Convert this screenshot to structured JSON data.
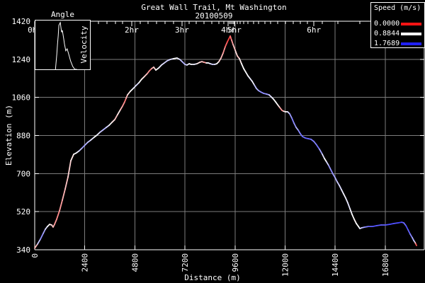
{
  "chart_data": {
    "type": "line",
    "title": "Great Wall Trail, Mt Washington",
    "subtitle": "20100509",
    "xlabel": "Distance (m)",
    "ylabel": "Elevation (m)",
    "xlim": [
      0,
      18670
    ],
    "ylim": [
      340,
      1420
    ],
    "x_ticks": [
      0,
      2400,
      4800,
      7200,
      9600,
      12000,
      14400,
      16800
    ],
    "y_ticks": [
      340,
      520,
      700,
      880,
      1060,
      1240,
      1420
    ],
    "grid": true,
    "grid_color": "#7d7d7d",
    "background": "#000000",
    "legend": {
      "title": "Speed (m/s)",
      "position": "top-right",
      "entries": [
        {
          "label": "0.0000",
          "color": "#ff1414"
        },
        {
          "label": "0.8844",
          "color": "#ffffff"
        },
        {
          "label": "1.7689",
          "color": "#2020ff"
        }
      ]
    },
    "time_axis": {
      "description": "elapsed-time labels along top border at distance reached",
      "major": [
        {
          "label": "0hr",
          "dist": 0
        },
        {
          "label": "2hr",
          "dist": 4650
        },
        {
          "label": "3hr",
          "dist": 7060
        },
        {
          "label": "4hr",
          "dist": 9270
        },
        {
          "label": "5hr",
          "dist": 9570
        },
        {
          "label": "6hr",
          "dist": 13380
        }
      ],
      "minor_dist": [
        3060,
        3460,
        3870,
        4210,
        5060,
        5430,
        5840,
        6250,
        6650,
        7400,
        7740,
        8110,
        8490,
        8830,
        9070,
        9340,
        9400,
        9470,
        9540,
        9710,
        9850,
        10020,
        10220,
        10490,
        10730,
        11030,
        11310,
        11650,
        12020,
        12390,
        12730,
        13070,
        13780,
        14530,
        15580
      ]
    },
    "inset": {
      "type": "line",
      "title": "Angle",
      "ylabel": "Velocity",
      "curve_pct": [
        [
          36.7,
          100
        ],
        [
          39.2,
          69
        ],
        [
          40.5,
          48
        ],
        [
          41.8,
          31
        ],
        [
          43,
          10
        ],
        [
          45.6,
          4
        ],
        [
          46.8,
          14
        ],
        [
          48.1,
          24
        ],
        [
          49.4,
          20
        ],
        [
          51.9,
          38
        ],
        [
          53.2,
          48
        ],
        [
          55.7,
          62
        ],
        [
          58.2,
          58
        ],
        [
          60.8,
          68
        ],
        [
          64.6,
          83
        ],
        [
          68.4,
          94
        ],
        [
          72.2,
          100
        ],
        [
          76,
          100
        ]
      ]
    },
    "series_label": "elevation profile colored by speed",
    "profile": [
      [
        0,
        347,
        "#ff5050"
      ],
      [
        136,
        367,
        "#ffb8b8"
      ],
      [
        272,
        390,
        "#c8c8ff"
      ],
      [
        407,
        417,
        "#9090ff"
      ],
      [
        509,
        437,
        "#a8a8ff"
      ],
      [
        611,
        450,
        "#e0e0ff"
      ],
      [
        713,
        460,
        "#ffffff"
      ],
      [
        815,
        457,
        "#fff0f0"
      ],
      [
        883,
        447,
        "#ffd0d0"
      ],
      [
        950,
        460,
        "#ffb0b0"
      ],
      [
        1052,
        484,
        "#ff9898"
      ],
      [
        1188,
        524,
        "#ff8c8c"
      ],
      [
        1324,
        574,
        "#ff9c9c"
      ],
      [
        1460,
        627,
        "#ffb4b4"
      ],
      [
        1596,
        684,
        "#ffc4c4"
      ],
      [
        1732,
        761,
        "#ffd4d4"
      ],
      [
        1867,
        791,
        "#ffe8e8"
      ],
      [
        2003,
        798,
        "#ffffff"
      ],
      [
        2139,
        808,
        "#f0f0ff"
      ],
      [
        2275,
        821,
        "#c8c8ff"
      ],
      [
        2411,
        835,
        "#a0a0ff"
      ],
      [
        2546,
        848,
        "#b0b0ff"
      ],
      [
        2682,
        858,
        "#ccccff"
      ],
      [
        2852,
        872,
        "#e8e8ff"
      ],
      [
        2988,
        882,
        "#ffffff"
      ],
      [
        3124,
        895,
        "#eeeeff"
      ],
      [
        3259,
        905,
        "#c8c8ff"
      ],
      [
        3429,
        918,
        "#b8b8ff"
      ],
      [
        3565,
        928,
        "#d8d8ff"
      ],
      [
        3701,
        942,
        "#f4f4f4"
      ],
      [
        3837,
        955,
        "#ffe4e4"
      ],
      [
        3972,
        979,
        "#ffc4c4"
      ],
      [
        4108,
        1002,
        "#ffe8e8"
      ],
      [
        4210,
        1019,
        "#ffb4b4"
      ],
      [
        4312,
        1039,
        "#ff9494"
      ],
      [
        4380,
        1056,
        "#ff7878"
      ],
      [
        4448,
        1072,
        "#ffb4b4"
      ],
      [
        4583,
        1089,
        "#ffe4e4"
      ],
      [
        4719,
        1102,
        "#ffffff"
      ],
      [
        4855,
        1116,
        "#ececff"
      ],
      [
        4991,
        1129,
        "#dcdcff"
      ],
      [
        5127,
        1146,
        "#ffffff"
      ],
      [
        5262,
        1159,
        "#ffeaea"
      ],
      [
        5398,
        1173,
        "#ffcccc"
      ],
      [
        5500,
        1186,
        "#ff9c9c"
      ],
      [
        5602,
        1196,
        "#ff8484"
      ],
      [
        5704,
        1203,
        "#ffacac"
      ],
      [
        5806,
        1189,
        "#ffd4d4"
      ],
      [
        5942,
        1199,
        "#ffffff"
      ],
      [
        6077,
        1213,
        "#f0f0ff"
      ],
      [
        6213,
        1223,
        "#e2e2ff"
      ],
      [
        6349,
        1233,
        "#d4d4ff"
      ],
      [
        6485,
        1239,
        "#ccccff"
      ],
      [
        6654,
        1243,
        "#e2e2ff"
      ],
      [
        6824,
        1246,
        "#ffffff"
      ],
      [
        6960,
        1239,
        "#ececff"
      ],
      [
        7096,
        1226,
        "#c4c4ff"
      ],
      [
        7198,
        1216,
        "#acacff"
      ],
      [
        7299,
        1213,
        "#c4c4ff"
      ],
      [
        7401,
        1219,
        "#ececff"
      ],
      [
        7503,
        1216,
        "#ffffff"
      ],
      [
        7639,
        1216,
        "#f4f4ff"
      ],
      [
        7775,
        1219,
        "#ececff"
      ],
      [
        7910,
        1226,
        "#ffeaea"
      ],
      [
        8012,
        1229,
        "#ffd4d4"
      ],
      [
        8114,
        1226,
        "#ffc4c4"
      ],
      [
        8216,
        1223,
        "#ff9494"
      ],
      [
        8318,
        1223,
        "#ffffff"
      ],
      [
        8420,
        1219,
        "#f2f2ff"
      ],
      [
        8522,
        1216,
        "#dcdcff"
      ],
      [
        8623,
        1216,
        "#ccccff"
      ],
      [
        8725,
        1219,
        "#ececff"
      ],
      [
        8827,
        1229,
        "#ffffff"
      ],
      [
        8929,
        1246,
        "#ffd4d4"
      ],
      [
        9031,
        1270,
        "#ffb4b4"
      ],
      [
        9133,
        1300,
        "#ff9494"
      ],
      [
        9234,
        1323,
        "#ff6464"
      ],
      [
        9336,
        1343,
        "#ff4444"
      ],
      [
        9370,
        1350,
        "#ff3434"
      ],
      [
        9438,
        1330,
        "#ff7474"
      ],
      [
        9506,
        1310,
        "#ff9c9c"
      ],
      [
        9608,
        1283,
        "#ffbcbc"
      ],
      [
        9710,
        1256,
        "#ffdada"
      ],
      [
        9812,
        1243,
        "#ffc4c4"
      ],
      [
        9913,
        1219,
        "#ffeeee"
      ],
      [
        10015,
        1196,
        "#ffffff"
      ],
      [
        10117,
        1179,
        "#ffffff"
      ],
      [
        10219,
        1162,
        "#fafaff"
      ],
      [
        10321,
        1149,
        "#f4f4ff"
      ],
      [
        10423,
        1136,
        "#ececff"
      ],
      [
        10524,
        1119,
        "#f4f4ff"
      ],
      [
        10626,
        1102,
        "#c4c4ff"
      ],
      [
        10728,
        1092,
        "#b8b8ff"
      ],
      [
        10830,
        1086,
        "#a0a0ff"
      ],
      [
        10966,
        1079,
        "#8c8cff"
      ],
      [
        11102,
        1076,
        "#8c8cff"
      ],
      [
        11237,
        1072,
        "#9c9cff"
      ],
      [
        11339,
        1062,
        "#d8d8ff"
      ],
      [
        11441,
        1052,
        "#ececff"
      ],
      [
        11543,
        1039,
        "#ffffff"
      ],
      [
        11645,
        1025,
        "#ffffff"
      ],
      [
        11747,
        1012,
        "#ffeaea"
      ],
      [
        11849,
        999,
        "#ffa4a4"
      ],
      [
        11917,
        995,
        "#ff8c8c"
      ],
      [
        12019,
        992,
        "#ffe4e4"
      ],
      [
        12121,
        992,
        "#ffffff"
      ],
      [
        12222,
        982,
        "#d8d8ff"
      ],
      [
        12324,
        962,
        "#9c9cff"
      ],
      [
        12426,
        938,
        "#8484ff"
      ],
      [
        12528,
        918,
        "#9494ff"
      ],
      [
        12630,
        905,
        "#b4b4ff"
      ],
      [
        12732,
        888,
        "#8c8cff"
      ],
      [
        12833,
        875,
        "#7474ff"
      ],
      [
        12969,
        868,
        "#6c6cff"
      ],
      [
        13105,
        865,
        "#6464ff"
      ],
      [
        13241,
        862,
        "#6c6cff"
      ],
      [
        13376,
        852,
        "#7c7cff"
      ],
      [
        13512,
        835,
        "#8484ff"
      ],
      [
        13648,
        815,
        "#7474ff"
      ],
      [
        13784,
        791,
        "#a4a4ff"
      ],
      [
        13886,
        771,
        "#e0e0ff"
      ],
      [
        13987,
        755,
        "#ffffff"
      ],
      [
        14089,
        738,
        "#d4d4ff"
      ],
      [
        14191,
        718,
        "#9c9cff"
      ],
      [
        14293,
        698,
        "#8c8cff"
      ],
      [
        14395,
        681,
        "#9c9cff"
      ],
      [
        14496,
        661,
        "#b4b4ff"
      ],
      [
        14598,
        644,
        "#ccccff"
      ],
      [
        14700,
        624,
        "#dcdcff"
      ],
      [
        14802,
        604,
        "#ececff"
      ],
      [
        14904,
        584,
        "#f4f4ff"
      ],
      [
        15006,
        561,
        "#ececff"
      ],
      [
        15107,
        534,
        "#e4e4ff"
      ],
      [
        15209,
        507,
        "#f4f4ff"
      ],
      [
        15311,
        484,
        "#ffffff"
      ],
      [
        15413,
        464,
        "#fff4f4"
      ],
      [
        15515,
        450,
        "#ffffff"
      ],
      [
        15583,
        440,
        "#ffffff"
      ],
      [
        15685,
        444,
        "#e0e0ff"
      ],
      [
        15820,
        447,
        "#b4b4ff"
      ],
      [
        15990,
        450,
        "#8484ff"
      ],
      [
        16194,
        450,
        "#6464ff"
      ],
      [
        16398,
        454,
        "#5454ff"
      ],
      [
        16601,
        457,
        "#5c5cff"
      ],
      [
        16805,
        457,
        "#6464ff"
      ],
      [
        17009,
        460,
        "#5454ff"
      ],
      [
        17213,
        464,
        "#4c4cff"
      ],
      [
        17416,
        467,
        "#5454ff"
      ],
      [
        17586,
        470,
        "#4444ff"
      ],
      [
        17688,
        467,
        "#5c5cff"
      ],
      [
        17790,
        454,
        "#6c6cff"
      ],
      [
        17892,
        434,
        "#5454ff"
      ],
      [
        17993,
        414,
        "#6464ff"
      ],
      [
        18095,
        397,
        "#8484ff"
      ],
      [
        18163,
        384,
        "#acacff"
      ],
      [
        18231,
        374,
        "#ccccff"
      ],
      [
        18265,
        367,
        "#ffb4b4"
      ],
      [
        18299,
        360,
        "#ff5454"
      ]
    ]
  }
}
